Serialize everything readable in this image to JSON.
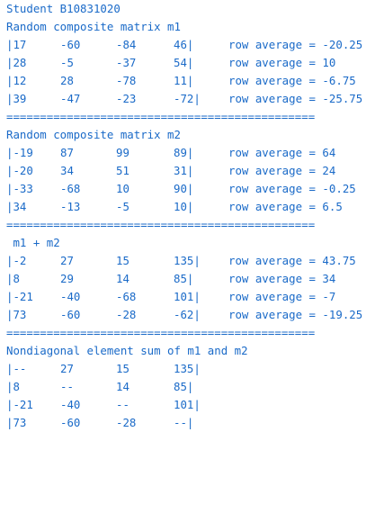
{
  "student_line": "Student B10831020",
  "sections": [
    {
      "title": "Random composite matrix m1",
      "rows": [
        {
          "cells": [
            "|17",
            "-60",
            "-84",
            "46|"
          ],
          "avg": "row average = -20.25"
        },
        {
          "cells": [
            "|28",
            "-5",
            "-37",
            "54|"
          ],
          "avg": "row average = 10"
        },
        {
          "cells": [
            "|12",
            "28",
            "-78",
            "11|"
          ],
          "avg": "row average = -6.75"
        },
        {
          "cells": [
            "|39",
            "-47",
            "-23",
            "-72|"
          ],
          "avg": "row average = -25.75"
        }
      ],
      "separator": "=============================================="
    },
    {
      "title": "Random composite matrix m2",
      "rows": [
        {
          "cells": [
            "|-19",
            "87",
            "99",
            "89|"
          ],
          "avg": "row average = 64"
        },
        {
          "cells": [
            "|-20",
            "34",
            "51",
            "31|"
          ],
          "avg": "row average = 24"
        },
        {
          "cells": [
            "|-33",
            "-68",
            "10",
            "90|"
          ],
          "avg": "row average = -0.25"
        },
        {
          "cells": [
            "|34",
            "-13",
            "-5",
            "10|"
          ],
          "avg": "row average = 6.5"
        }
      ],
      "separator": "=============================================="
    },
    {
      "title": " m1 + m2",
      "rows": [
        {
          "cells": [
            "|-2",
            "27",
            "15",
            "135|"
          ],
          "avg": "row average = 43.75"
        },
        {
          "cells": [
            "|8",
            "29",
            "14",
            "85|"
          ],
          "avg": "row average = 34"
        },
        {
          "cells": [
            "|-21",
            "-40",
            "-68",
            "101|"
          ],
          "avg": "row average = -7"
        },
        {
          "cells": [
            "|73",
            "-60",
            "-28",
            "-62|"
          ],
          "avg": "row average = -19.25"
        }
      ],
      "separator": "=============================================="
    },
    {
      "title": "Nondiagonal element sum of m1 and m2",
      "rows": [
        {
          "cells": [
            "|--",
            "27",
            "15",
            "135|"
          ]
        },
        {
          "cells": [
            "|8",
            "--",
            "14",
            "85|"
          ]
        },
        {
          "cells": [
            "|-21",
            "-40",
            "--",
            "101|"
          ]
        },
        {
          "cells": [
            "|73",
            "-60",
            "-28",
            "--|"
          ]
        }
      ]
    }
  ]
}
